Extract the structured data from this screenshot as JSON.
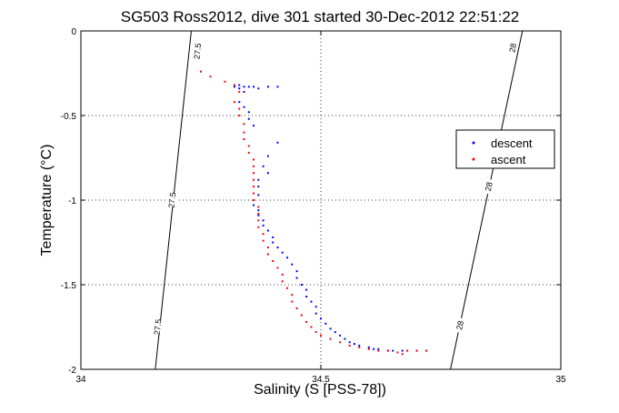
{
  "chart_data": {
    "type": "scatter",
    "title": "SG503 Ross2012, dive 301 started 30-Dec-2012 22:51:22",
    "xlabel": "Salinity (S [PSS-78])",
    "ylabel": "Temperature (°C)",
    "xlim": [
      34,
      35
    ],
    "ylim": [
      -2,
      0
    ],
    "xticks": [
      34,
      34.5,
      35
    ],
    "xtick_labels": [
      "34",
      "34.5",
      "35"
    ],
    "yticks": [
      0,
      -0.5,
      -1,
      -1.5,
      -2
    ],
    "ytick_labels": [
      "0",
      "-0.5",
      "-1",
      "-1.5",
      "-2"
    ],
    "grid": true,
    "legend_position": "right",
    "series": [
      {
        "name": "descent",
        "color": "#0000ff",
        "points": [
          [
            34.32,
            -0.33
          ],
          [
            34.33,
            -0.32
          ],
          [
            34.33,
            -0.34
          ],
          [
            34.34,
            -0.33
          ],
          [
            34.34,
            -0.36
          ],
          [
            34.35,
            -0.33
          ],
          [
            34.36,
            -0.33
          ],
          [
            34.37,
            -0.34
          ],
          [
            34.39,
            -0.33
          ],
          [
            34.41,
            -0.33
          ],
          [
            34.33,
            -0.42
          ],
          [
            34.34,
            -0.45
          ],
          [
            34.35,
            -0.48
          ],
          [
            34.35,
            -0.52
          ],
          [
            34.36,
            -0.56
          ],
          [
            34.41,
            -0.66
          ],
          [
            34.39,
            -0.74
          ],
          [
            34.38,
            -0.8
          ],
          [
            34.39,
            -0.84
          ],
          [
            34.37,
            -0.88
          ],
          [
            34.37,
            -0.92
          ],
          [
            34.37,
            -0.97
          ],
          [
            34.36,
            -1.0
          ],
          [
            34.36,
            -1.03
          ],
          [
            34.37,
            -1.06
          ],
          [
            34.37,
            -1.09
          ],
          [
            34.38,
            -1.12
          ],
          [
            34.38,
            -1.15
          ],
          [
            34.39,
            -1.18
          ],
          [
            34.4,
            -1.22
          ],
          [
            34.4,
            -1.25
          ],
          [
            34.41,
            -1.28
          ],
          [
            34.42,
            -1.31
          ],
          [
            34.43,
            -1.34
          ],
          [
            34.44,
            -1.38
          ],
          [
            34.45,
            -1.42
          ],
          [
            34.45,
            -1.46
          ],
          [
            34.46,
            -1.5
          ],
          [
            34.47,
            -1.53
          ],
          [
            34.47,
            -1.57
          ],
          [
            34.48,
            -1.6
          ],
          [
            34.49,
            -1.63
          ],
          [
            34.49,
            -1.67
          ],
          [
            34.5,
            -1.7
          ],
          [
            34.51,
            -1.73
          ],
          [
            34.52,
            -1.76
          ],
          [
            34.53,
            -1.78
          ],
          [
            34.54,
            -1.8
          ],
          [
            34.55,
            -1.82
          ],
          [
            34.56,
            -1.84
          ],
          [
            34.57,
            -1.85
          ],
          [
            34.58,
            -1.86
          ],
          [
            34.6,
            -1.87
          ],
          [
            34.61,
            -1.88
          ],
          [
            34.62,
            -1.88
          ],
          [
            34.64,
            -1.89
          ],
          [
            34.65,
            -1.89
          ],
          [
            34.67,
            -1.89
          ],
          [
            34.68,
            -1.89
          ],
          [
            34.7,
            -1.89
          ],
          [
            34.72,
            -1.89
          ]
        ]
      },
      {
        "name": "ascent",
        "color": "#ff0000",
        "points": [
          [
            34.25,
            -0.24
          ],
          [
            34.27,
            -0.27
          ],
          [
            34.3,
            -0.3
          ],
          [
            34.32,
            -0.32
          ],
          [
            34.33,
            -0.36
          ],
          [
            34.32,
            -0.42
          ],
          [
            34.33,
            -0.46
          ],
          [
            34.33,
            -0.5
          ],
          [
            34.34,
            -0.55
          ],
          [
            34.34,
            -0.6
          ],
          [
            34.34,
            -0.64
          ],
          [
            34.35,
            -0.68
          ],
          [
            34.35,
            -0.72
          ],
          [
            34.36,
            -0.76
          ],
          [
            34.36,
            -0.8
          ],
          [
            34.36,
            -0.84
          ],
          [
            34.36,
            -0.88
          ],
          [
            34.36,
            -0.92
          ],
          [
            34.36,
            -0.96
          ],
          [
            34.36,
            -1.0
          ],
          [
            34.37,
            -1.04
          ],
          [
            34.37,
            -1.08
          ],
          [
            34.37,
            -1.12
          ],
          [
            34.37,
            -1.16
          ],
          [
            34.38,
            -1.2
          ],
          [
            34.38,
            -1.24
          ],
          [
            34.39,
            -1.28
          ],
          [
            34.39,
            -1.32
          ],
          [
            34.4,
            -1.36
          ],
          [
            34.41,
            -1.4
          ],
          [
            34.42,
            -1.44
          ],
          [
            34.42,
            -1.48
          ],
          [
            34.43,
            -1.52
          ],
          [
            34.44,
            -1.56
          ],
          [
            34.44,
            -1.6
          ],
          [
            34.45,
            -1.64
          ],
          [
            34.46,
            -1.68
          ],
          [
            34.47,
            -1.72
          ],
          [
            34.48,
            -1.75
          ],
          [
            34.49,
            -1.78
          ],
          [
            34.5,
            -1.8
          ],
          [
            34.52,
            -1.82
          ],
          [
            34.54,
            -1.84
          ],
          [
            34.56,
            -1.86
          ],
          [
            34.58,
            -1.87
          ],
          [
            34.6,
            -1.88
          ],
          [
            34.62,
            -1.89
          ],
          [
            34.64,
            -1.89
          ],
          [
            34.66,
            -1.9
          ],
          [
            34.67,
            -1.91
          ],
          [
            34.68,
            -1.89
          ],
          [
            34.7,
            -1.89
          ],
          [
            34.72,
            -1.89
          ]
        ]
      }
    ],
    "contours": [
      {
        "label": "27.5",
        "color": "#000000",
        "from": [
          34.23,
          0.0
        ],
        "to": [
          34.155,
          -2.0
        ],
        "label_positions": [
          [
            34.243,
            -0.12
          ],
          [
            34.19,
            -1.0
          ],
          [
            34.16,
            -1.75
          ]
        ]
      },
      {
        "label": "28",
        "color": "#000000",
        "from": [
          34.92,
          0.0
        ],
        "to": [
          34.77,
          -2.0
        ],
        "label_positions": [
          [
            34.9,
            -0.1
          ],
          [
            34.85,
            -0.92
          ],
          [
            34.79,
            -1.74
          ]
        ]
      }
    ]
  }
}
